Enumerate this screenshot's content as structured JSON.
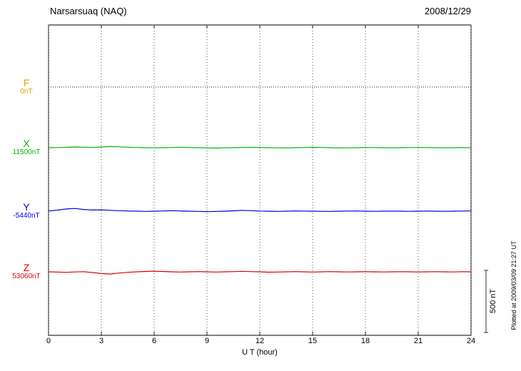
{
  "header": {
    "title": "Narsarsuaq (NAQ)",
    "date": "2008/12/29"
  },
  "chart_data": {
    "type": "line",
    "title": "Narsarsuaq (NAQ)",
    "date": "2008/12/29",
    "xlabel": "U T (hour)",
    "x_range": [
      0,
      24
    ],
    "x_ticks": [
      0,
      3,
      6,
      9,
      12,
      15,
      18,
      21,
      24
    ],
    "y_unit": "nT",
    "grid": "vertical-dotted",
    "scale_bar": {
      "label": "500 nT",
      "nT": 500
    },
    "footer_note": "Plotted at 2009/03/09 21:27 UT",
    "series": [
      {
        "name": "F",
        "baseline_label": "0nT",
        "baseline_nT": 0,
        "label_color": "#E8A000",
        "trace_color": "#444444",
        "style": "dotted",
        "offsets_nT": [
          0,
          0,
          0,
          0,
          0,
          0,
          0,
          0,
          0,
          0,
          0,
          0,
          0,
          0,
          0,
          0,
          0,
          0,
          0,
          0,
          0,
          0,
          0,
          0,
          0,
          0,
          0,
          0,
          0,
          0,
          0,
          0,
          0,
          0,
          0,
          0,
          0,
          0,
          0,
          0,
          0,
          0,
          0,
          0,
          0,
          0,
          0,
          0,
          0
        ]
      },
      {
        "name": "X",
        "baseline_label": "11500nT",
        "baseline_nT": 11500,
        "label_color": "#00B400",
        "trace_color": "#00B400",
        "style": "solid",
        "offsets_nT": [
          0,
          1,
          3,
          5,
          4,
          2,
          6,
          9,
          7,
          4,
          2,
          0,
          -1,
          0,
          2,
          3,
          1,
          0,
          -2,
          -3,
          -1,
          0,
          2,
          3,
          2,
          0,
          -1,
          -2,
          0,
          1,
          3,
          2,
          0,
          -2,
          -1,
          0,
          2,
          1,
          0,
          -1,
          0,
          1,
          2,
          1,
          0,
          -1,
          0,
          1,
          0
        ]
      },
      {
        "name": "Y",
        "baseline_label": "-5440nT",
        "baseline_nT": -5440,
        "label_color": "#0000E0",
        "trace_color": "#0000E0",
        "style": "solid",
        "offsets_nT": [
          2,
          8,
          18,
          22,
          14,
          9,
          11,
          7,
          4,
          2,
          0,
          -2,
          0,
          2,
          4,
          2,
          0,
          -2,
          -4,
          -2,
          0,
          3,
          7,
          4,
          1,
          0,
          -2,
          0,
          2,
          1,
          0,
          -1,
          -2,
          0,
          1,
          2,
          0,
          -1,
          0,
          1,
          0,
          -1,
          0,
          1,
          0,
          -1,
          0,
          1,
          2
        ]
      },
      {
        "name": "Z",
        "baseline_label": "53060nT",
        "baseline_nT": 53060,
        "label_color": "#E00000",
        "trace_color": "#E00000",
        "style": "solid",
        "offsets_nT": [
          0,
          -2,
          -4,
          -1,
          1,
          -6,
          -14,
          -18,
          -10,
          -4,
          0,
          3,
          5,
          3,
          0,
          -2,
          0,
          2,
          0,
          -2,
          0,
          2,
          4,
          2,
          0,
          -3,
          -2,
          0,
          2,
          0,
          -2,
          0,
          2,
          0,
          -1,
          0,
          1,
          0,
          -1,
          0,
          1,
          0,
          -1,
          0,
          1,
          0,
          -1,
          1,
          0
        ]
      }
    ]
  }
}
